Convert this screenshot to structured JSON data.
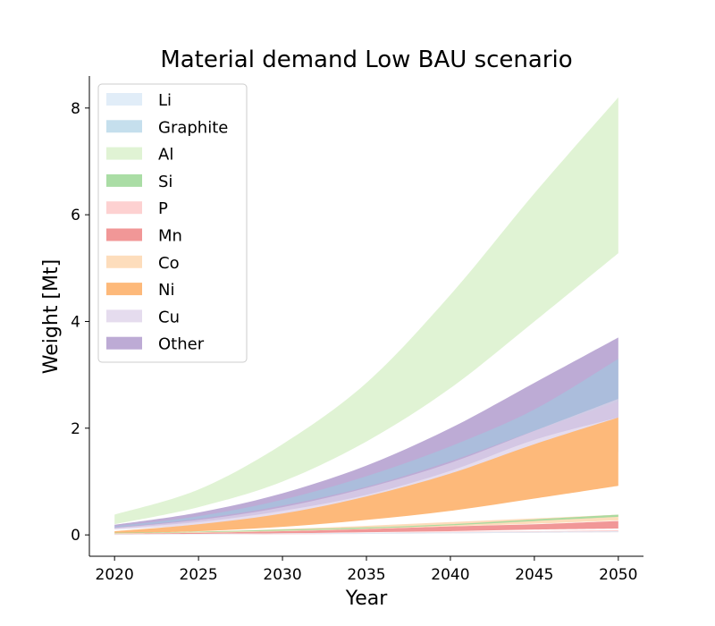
{
  "chart_data": {
    "type": "area",
    "title": "Material demand Low BAU scenario",
    "xlabel": "Year",
    "ylabel": "Weight [Mt]",
    "xlim": [
      2018.5,
      2051.5
    ],
    "ylim": [
      -0.4,
      8.6
    ],
    "xticks": [
      2020,
      2025,
      2030,
      2035,
      2040,
      2045,
      2050
    ],
    "yticks": [
      0,
      2,
      4,
      6,
      8
    ],
    "legend": "upper-left",
    "x": [
      2020,
      2025,
      2030,
      2035,
      2040,
      2045,
      2050
    ],
    "series": [
      {
        "name": "Li",
        "color": "#deebf7",
        "lower": [
          0.01,
          0.01,
          0.02,
          0.02,
          0.03,
          0.04,
          0.05
        ],
        "upper": [
          0.02,
          0.02,
          0.03,
          0.04,
          0.05,
          0.06,
          0.07
        ]
      },
      {
        "name": "Graphite",
        "color": "#9ecae1",
        "lower": [
          0.14,
          0.3,
          0.55,
          0.9,
          1.38,
          1.95,
          2.5
        ],
        "upper": [
          0.16,
          0.35,
          0.66,
          1.1,
          1.66,
          2.35,
          3.3
        ]
      },
      {
        "name": "Al",
        "color": "#e0f3d4",
        "lower": [
          0.2,
          0.52,
          1.0,
          1.75,
          2.75,
          4.0,
          5.28
        ],
        "upper": [
          0.38,
          0.85,
          1.7,
          2.85,
          4.5,
          6.4,
          8.2
        ]
      },
      {
        "name": "Si",
        "color": "#a1d99b",
        "lower": [
          0.03,
          0.05,
          0.08,
          0.12,
          0.18,
          0.26,
          0.34
        ],
        "upper": [
          0.04,
          0.06,
          0.1,
          0.14,
          0.2,
          0.29,
          0.38
        ]
      },
      {
        "name": "P",
        "color": "#fcc5c5",
        "lower": [
          0.0,
          0.01,
          0.01,
          0.02,
          0.03,
          0.04,
          0.05
        ],
        "upper": [
          0.01,
          0.02,
          0.03,
          0.04,
          0.06,
          0.07,
          0.09
        ]
      },
      {
        "name": "Mn",
        "color": "#f08c8c",
        "lower": [
          0.01,
          0.02,
          0.03,
          0.05,
          0.07,
          0.1,
          0.12
        ],
        "upper": [
          0.02,
          0.04,
          0.07,
          0.11,
          0.16,
          0.2,
          0.26
        ]
      },
      {
        "name": "Co",
        "color": "#fdd9b5",
        "lower": [
          0.02,
          0.04,
          0.07,
          0.11,
          0.16,
          0.21,
          0.27
        ],
        "upper": [
          0.03,
          0.06,
          0.11,
          0.17,
          0.24,
          0.31,
          0.38
        ]
      },
      {
        "name": "Ni",
        "color": "#fdb97a",
        "lower": [
          0.03,
          0.07,
          0.15,
          0.28,
          0.45,
          0.68,
          0.92
        ],
        "upper": [
          0.07,
          0.2,
          0.4,
          0.72,
          1.15,
          1.7,
          2.2
        ]
      },
      {
        "name": "Cu",
        "color": "#dcd0e8",
        "lower": [
          0.1,
          0.18,
          0.3,
          0.48,
          0.72,
          1.1,
          1.55
        ],
        "upper": [
          0.13,
          0.28,
          0.52,
          0.88,
          1.35,
          1.95,
          2.55
        ]
      },
      {
        "name": "Other",
        "color": "#a48ac5",
        "lower": [
          0.12,
          0.24,
          0.45,
          0.75,
          1.2,
          1.78,
          2.2
        ],
        "upper": [
          0.19,
          0.42,
          0.78,
          1.3,
          2.0,
          2.85,
          3.7
        ]
      }
    ]
  }
}
